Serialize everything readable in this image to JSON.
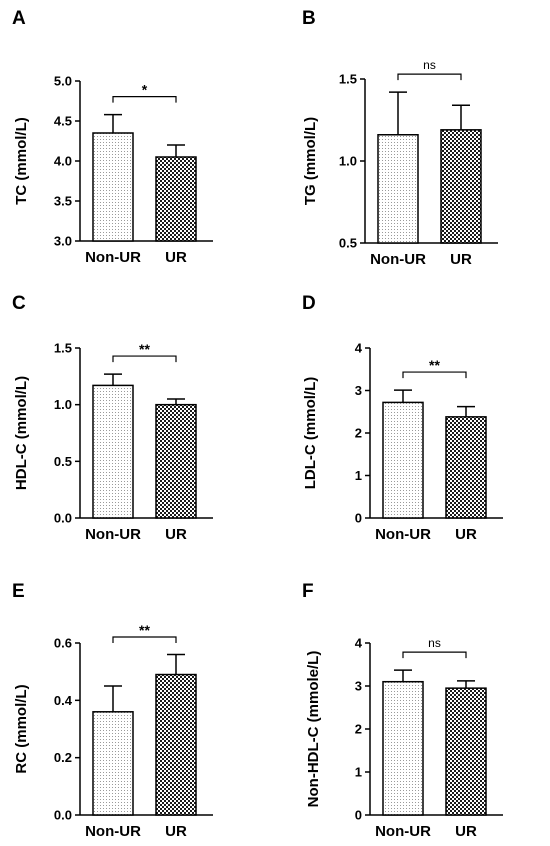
{
  "chart_data": [
    {
      "type": "bar",
      "panel": "A",
      "categories": [
        "Non-UR",
        "UR"
      ],
      "values": [
        4.35,
        4.05
      ],
      "errors": [
        0.23,
        0.15
      ],
      "ylabel": "TC (mmol/L)",
      "ylim": [
        3.0,
        5.0
      ],
      "yticks": [
        "3.0",
        "3.5",
        "4.0",
        "4.5",
        "5.0"
      ],
      "significance": "*"
    },
    {
      "type": "bar",
      "panel": "B",
      "categories": [
        "Non-UR",
        "UR"
      ],
      "values": [
        1.16,
        1.19
      ],
      "errors": [
        0.26,
        0.15
      ],
      "ylabel": "TG (mmol/L)",
      "ylim": [
        0.5,
        1.5
      ],
      "yticks": [
        "0.5",
        "1.0",
        "1.5"
      ],
      "significance": "ns"
    },
    {
      "type": "bar",
      "panel": "C",
      "categories": [
        "Non-UR",
        "UR"
      ],
      "values": [
        1.17,
        1.0
      ],
      "errors": [
        0.1,
        0.05
      ],
      "ylabel": "HDL-C (mmol/L)",
      "ylim": [
        0.0,
        1.5
      ],
      "yticks": [
        "0.0",
        "0.5",
        "1.0",
        "1.5"
      ],
      "significance": "**"
    },
    {
      "type": "bar",
      "panel": "D",
      "categories": [
        "Non-UR",
        "UR"
      ],
      "values": [
        2.72,
        2.38
      ],
      "errors": [
        0.29,
        0.24
      ],
      "ylabel": "LDL-C (mmol/L)",
      "ylim": [
        0,
        4
      ],
      "yticks": [
        "0",
        "1",
        "2",
        "3",
        "4"
      ],
      "significance": "**"
    },
    {
      "type": "bar",
      "panel": "E",
      "categories": [
        "Non-UR",
        "UR"
      ],
      "values": [
        0.36,
        0.49
      ],
      "errors": [
        0.09,
        0.07
      ],
      "ylabel": "RC (mmol/L)",
      "ylim": [
        0.0,
        0.6
      ],
      "yticks": [
        "0.0",
        "0.2",
        "0.4",
        "0.6"
      ],
      "significance": "**"
    },
    {
      "type": "bar",
      "panel": "F",
      "categories": [
        "Non-UR",
        "UR"
      ],
      "values": [
        3.1,
        2.95
      ],
      "errors": [
        0.27,
        0.17
      ],
      "ylabel": "Non-HDL-C (mmole/L)",
      "ylim": [
        0,
        4
      ],
      "yticks": [
        "0",
        "1",
        "2",
        "3",
        "4"
      ],
      "significance": "ns"
    }
  ]
}
